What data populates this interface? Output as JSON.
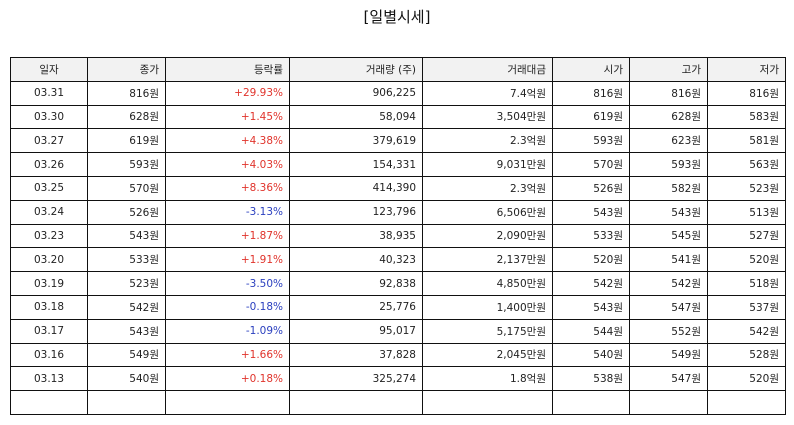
{
  "title": "[일별시세]",
  "colors": {
    "up": "#e0332b",
    "down": "#2a3fbf"
  },
  "columns": [
    "일자",
    "종가",
    "등락률",
    "거래량 (주)",
    "거래대금",
    "시가",
    "고가",
    "저가"
  ],
  "rows": [
    {
      "date": "03.31",
      "close": "816원",
      "change": "+29.93%",
      "dir": "up",
      "volume": "906,225",
      "value": "7.4억원",
      "open": "816원",
      "high": "816원",
      "low": "816원"
    },
    {
      "date": "03.30",
      "close": "628원",
      "change": "+1.45%",
      "dir": "up",
      "volume": "58,094",
      "value": "3,504만원",
      "open": "619원",
      "high": "628원",
      "low": "583원"
    },
    {
      "date": "03.27",
      "close": "619원",
      "change": "+4.38%",
      "dir": "up",
      "volume": "379,619",
      "value": "2.3억원",
      "open": "593원",
      "high": "623원",
      "low": "581원"
    },
    {
      "date": "03.26",
      "close": "593원",
      "change": "+4.03%",
      "dir": "up",
      "volume": "154,331",
      "value": "9,031만원",
      "open": "570원",
      "high": "593원",
      "low": "563원"
    },
    {
      "date": "03.25",
      "close": "570원",
      "change": "+8.36%",
      "dir": "up",
      "volume": "414,390",
      "value": "2.3억원",
      "open": "526원",
      "high": "582원",
      "low": "523원"
    },
    {
      "date": "03.24",
      "close": "526원",
      "change": "-3.13%",
      "dir": "down",
      "volume": "123,796",
      "value": "6,506만원",
      "open": "543원",
      "high": "543원",
      "low": "513원"
    },
    {
      "date": "03.23",
      "close": "543원",
      "change": "+1.87%",
      "dir": "up",
      "volume": "38,935",
      "value": "2,090만원",
      "open": "533원",
      "high": "545원",
      "low": "527원"
    },
    {
      "date": "03.20",
      "close": "533원",
      "change": "+1.91%",
      "dir": "up",
      "volume": "40,323",
      "value": "2,137만원",
      "open": "520원",
      "high": "541원",
      "low": "520원"
    },
    {
      "date": "03.19",
      "close": "523원",
      "change": "-3.50%",
      "dir": "down",
      "volume": "92,838",
      "value": "4,850만원",
      "open": "542원",
      "high": "542원",
      "low": "518원"
    },
    {
      "date": "03.18",
      "close": "542원",
      "change": "-0.18%",
      "dir": "down",
      "volume": "25,776",
      "value": "1,400만원",
      "open": "543원",
      "high": "547원",
      "low": "537원"
    },
    {
      "date": "03.17",
      "close": "543원",
      "change": "-1.09%",
      "dir": "down",
      "volume": "95,017",
      "value": "5,175만원",
      "open": "544원",
      "high": "552원",
      "low": "542원"
    },
    {
      "date": "03.16",
      "close": "549원",
      "change": "+1.66%",
      "dir": "up",
      "volume": "37,828",
      "value": "2,045만원",
      "open": "540원",
      "high": "549원",
      "low": "528원"
    },
    {
      "date": "03.13",
      "close": "540원",
      "change": "+0.18%",
      "dir": "up",
      "volume": "325,274",
      "value": "1.8억원",
      "open": "538원",
      "high": "547원",
      "low": "520원"
    },
    {
      "date": "",
      "close": "",
      "change": "",
      "dir": "",
      "volume": "",
      "value": "",
      "open": "",
      "high": "",
      "low": ""
    }
  ]
}
